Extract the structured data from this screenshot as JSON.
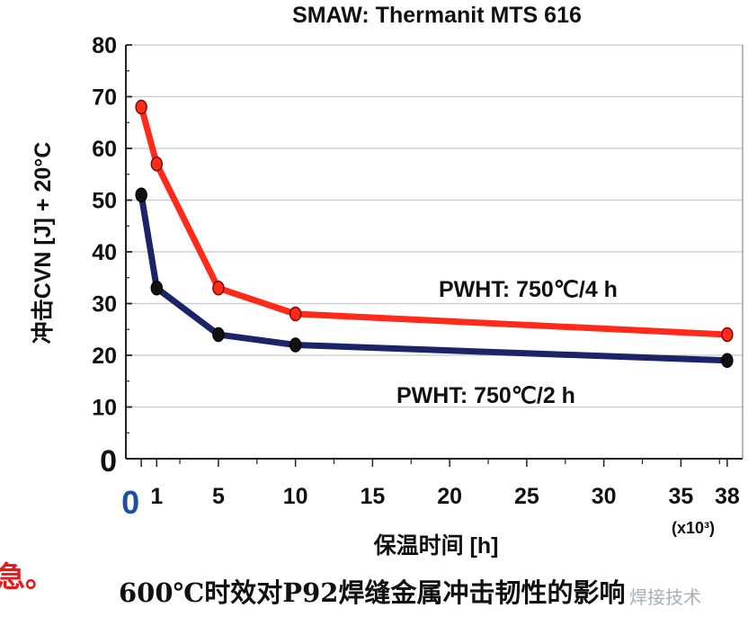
{
  "chart_data": {
    "type": "line",
    "title": "SMAW: Thermanit MTS 616",
    "xlabel": "保温时间 [h]",
    "x_multiplier": "(x10³)",
    "ylabel": "冲击CVN [J] + 20°C",
    "xlim": [
      -1,
      39
    ],
    "ylim": [
      0,
      80
    ],
    "y_ticks": [
      0,
      10,
      20,
      30,
      40,
      50,
      60,
      70,
      80
    ],
    "x_ticks_labeled": [
      "0",
      "1",
      "5",
      "10",
      "15",
      "20",
      "25",
      "30",
      "35",
      "38"
    ],
    "x_tick_values": [
      0,
      1,
      5,
      10,
      15,
      20,
      25,
      30,
      35,
      38
    ],
    "grid": "horizontal",
    "series": [
      {
        "name": "PWHT: 750℃/4 h",
        "color": "#ff2a1a",
        "x": [
          0,
          1,
          5,
          10,
          38
        ],
        "y": [
          68,
          57,
          33,
          28,
          24
        ]
      },
      {
        "name": "PWHT: 750℃/2 h",
        "color": "#1c2366",
        "x": [
          0,
          1,
          5,
          10,
          38
        ],
        "y": [
          51,
          33,
          24,
          22,
          19
        ]
      }
    ]
  },
  "caption": "600℃时效对P92焊缝金属冲击韧性的影响",
  "side_text": "急。",
  "watermark": "焊接技术",
  "zero_x_label": "0"
}
